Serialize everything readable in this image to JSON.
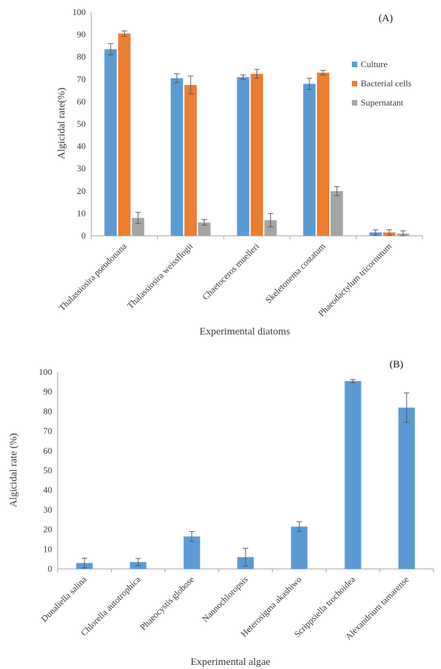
{
  "chart_data": [
    {
      "type": "bar",
      "panel_label": "(A)",
      "categories": [
        "Thalassiosira pseudonana",
        "Thalassiosira weissflogii",
        "Chaetoceros muelleri",
        "Skeletonema costatum",
        "Phaeodactylum tricornutum"
      ],
      "series": [
        {
          "name": "Culture",
          "color": "#5b9bd5",
          "values": [
            83.5,
            70.5,
            71,
            68,
            1.5
          ],
          "errors": [
            2.5,
            2,
            1,
            2.5,
            1.2
          ]
        },
        {
          "name": "Bacterial cells",
          "color": "#ed7d31",
          "values": [
            90.5,
            67.5,
            72.5,
            73,
            1.5
          ],
          "errors": [
            1.2,
            4,
            2,
            1,
            1.2
          ]
        },
        {
          "name": "Supernatant",
          "color": "#a5a5a5",
          "values": [
            8,
            6,
            7,
            20,
            1
          ],
          "errors": [
            2.5,
            1.2,
            3,
            2,
            1.2
          ]
        }
      ],
      "xlabel": "Experimental diatoms",
      "ylabel": "Algicidal rate(%)",
      "ylim": [
        0,
        100
      ],
      "yticks": [
        0,
        10,
        20,
        30,
        40,
        50,
        60,
        70,
        80,
        90,
        100
      ],
      "grid": false,
      "legend": "right"
    },
    {
      "type": "bar",
      "panel_label": "(B)",
      "categories": [
        "Dunaliella salina",
        "Chlorella autotrophica",
        "Phaeocystis globose",
        "Nannochloropsis",
        "Heterosigma akashiwo",
        "Scrippsiella trochoidea",
        "Alexandrium tamarense"
      ],
      "series": [
        {
          "color": "#5b9bd5",
          "values": [
            3,
            3.5,
            16.5,
            6,
            21.5,
            95.5,
            82
          ],
          "errors": [
            2.5,
            1.8,
            2.5,
            4.5,
            2.5,
            0.8,
            7.5
          ]
        }
      ],
      "xlabel": "Experimental algae",
      "ylabel": "Algicidal rate (%)",
      "ylim": [
        0,
        100
      ],
      "yticks": [
        0,
        10,
        20,
        30,
        40,
        50,
        60,
        70,
        80,
        90,
        100
      ],
      "grid": false
    }
  ]
}
